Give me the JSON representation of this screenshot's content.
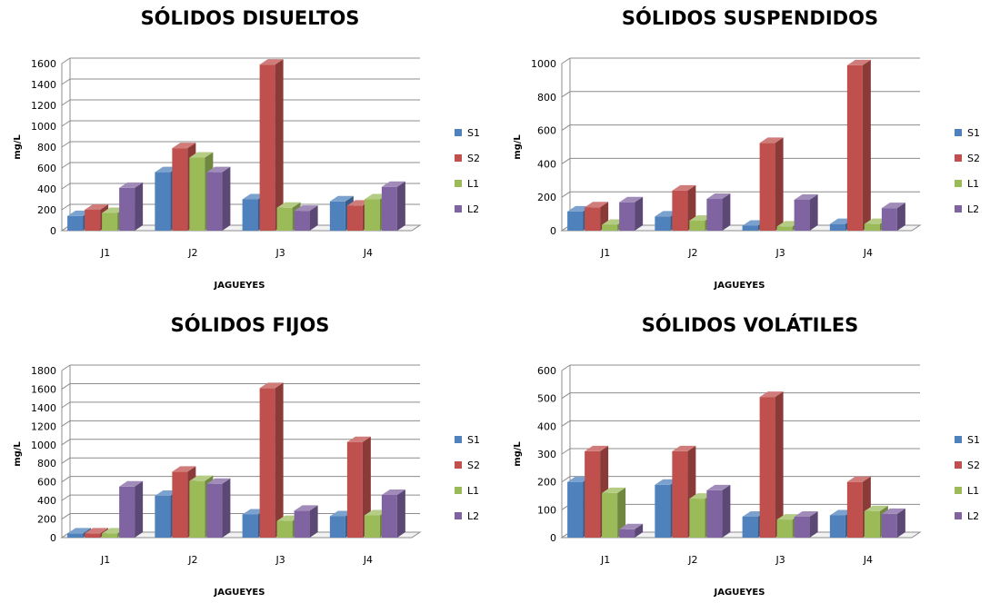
{
  "legend": {
    "colors": [
      "#4f81bd",
      "#c0504d",
      "#9bbb59",
      "#8064a2"
    ]
  },
  "chart_data": [
    {
      "type": "bar",
      "title": "SÓLIDOS DISUELTOS",
      "xlabel": "JAGUEYES",
      "ylabel": "mg/L",
      "categories": [
        "J1",
        "J2",
        "J3",
        "J4"
      ],
      "ylim": [
        0,
        1600
      ],
      "yticks": [
        "0",
        "200",
        "400",
        "600",
        "800",
        "1000",
        "1200",
        "1400",
        "1600"
      ],
      "legend_position": "right",
      "grid": true,
      "series": [
        {
          "name": "S1",
          "values": [
            140,
            560,
            300,
            280
          ]
        },
        {
          "name": "S2",
          "values": [
            200,
            790,
            1590,
            240
          ]
        },
        {
          "name": "L1",
          "values": [
            170,
            700,
            220,
            300
          ]
        },
        {
          "name": "L2",
          "values": [
            410,
            560,
            190,
            420
          ]
        }
      ]
    },
    {
      "type": "bar",
      "title": "SÓLIDOS SUSPENDIDOS",
      "xlabel": "JAGUEYES",
      "ylabel": "mg/L",
      "categories": [
        "J1",
        "J2",
        "J3",
        "J4"
      ],
      "ylim": [
        0,
        1000
      ],
      "yticks": [
        "0",
        "200",
        "400",
        "600",
        "800",
        "1000"
      ],
      "legend_position": "right",
      "grid": true,
      "series": [
        {
          "name": "S1",
          "values": [
            115,
            85,
            30,
            40
          ]
        },
        {
          "name": "S2",
          "values": [
            140,
            240,
            525,
            990
          ]
        },
        {
          "name": "L1",
          "values": [
            35,
            60,
            25,
            40
          ]
        },
        {
          "name": "L2",
          "values": [
            170,
            190,
            185,
            135
          ]
        }
      ]
    },
    {
      "type": "bar",
      "title": "SÓLIDOS FIJOS",
      "xlabel": "JAGUEYES",
      "ylabel": "mg/L",
      "categories": [
        "J1",
        "J2",
        "J3",
        "J4"
      ],
      "ylim": [
        0,
        1800
      ],
      "yticks": [
        "0",
        "200",
        "400",
        "600",
        "800",
        "1000",
        "1200",
        "1400",
        "1600",
        "1800"
      ],
      "legend_position": "right",
      "grid": true,
      "series": [
        {
          "name": "S1",
          "values": [
            45,
            450,
            250,
            230
          ]
        },
        {
          "name": "S2",
          "values": [
            45,
            710,
            1610,
            1030
          ]
        },
        {
          "name": "L1",
          "values": [
            45,
            610,
            180,
            240
          ]
        },
        {
          "name": "L2",
          "values": [
            550,
            580,
            290,
            460
          ]
        }
      ]
    },
    {
      "type": "bar",
      "title": "SÓLIDOS VOLÁTILES",
      "xlabel": "JAGUEYES",
      "ylabel": "mg/L",
      "categories": [
        "J1",
        "J2",
        "J3",
        "J4"
      ],
      "ylim": [
        0,
        600
      ],
      "yticks": [
        "0",
        "100",
        "200",
        "300",
        "400",
        "500",
        "600"
      ],
      "legend_position": "right",
      "grid": true,
      "series": [
        {
          "name": "S1",
          "values": [
            200,
            190,
            75,
            80
          ]
        },
        {
          "name": "S2",
          "values": [
            310,
            310,
            505,
            200
          ]
        },
        {
          "name": "L1",
          "values": [
            160,
            140,
            65,
            95
          ]
        },
        {
          "name": "L2",
          "values": [
            30,
            170,
            75,
            85
          ]
        }
      ]
    }
  ]
}
